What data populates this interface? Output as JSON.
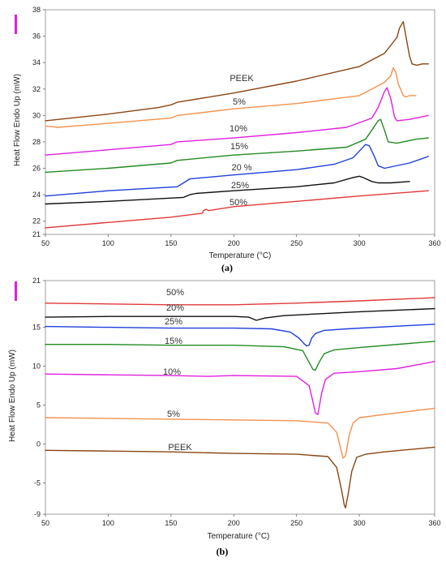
{
  "chart_data": [
    {
      "type": "line",
      "panel_label": "(a)",
      "xlabel": "Temperature (°C)",
      "ylabel": "Heat Flow Endo Up (mW)",
      "xlim": [
        50,
        360
      ],
      "ylim": [
        21,
        38
      ],
      "x_ticks": [
        "50",
        "100",
        "150",
        "200",
        "250",
        "300",
        "360"
      ],
      "y_ticks": [
        "21",
        "22",
        "24",
        "26",
        "28",
        "30",
        "32",
        "34",
        "36",
        "38"
      ],
      "grid": false,
      "legend_marker_color": "#e020e0",
      "series": [
        {
          "name": "PEEK",
          "color": "#8b4513",
          "x": [
            50,
            100,
            140,
            150,
            155,
            200,
            250,
            300,
            320,
            325,
            330,
            332,
            335,
            340,
            342,
            346,
            350,
            355
          ],
          "y": [
            29.6,
            30.1,
            30.6,
            30.8,
            31.0,
            31.7,
            32.6,
            33.7,
            34.7,
            35.3,
            35.9,
            36.6,
            37.1,
            34.5,
            33.9,
            33.8,
            33.9,
            33.9
          ]
        },
        {
          "name": "5%",
          "color": "#f5914d",
          "x": [
            50,
            60,
            100,
            150,
            155,
            200,
            250,
            300,
            320,
            325,
            327,
            329,
            331,
            335,
            337,
            340,
            345
          ],
          "y": [
            29.2,
            29.1,
            29.4,
            29.8,
            30.0,
            30.5,
            30.9,
            31.5,
            32.5,
            33.0,
            33.6,
            33.3,
            32.4,
            31.5,
            31.4,
            31.5,
            31.5
          ]
        },
        {
          "name": "10%",
          "color": "#e020e0",
          "x": [
            50,
            100,
            150,
            155,
            200,
            250,
            290,
            310,
            315,
            320,
            322,
            325,
            328,
            330,
            340,
            355
          ],
          "y": [
            27.0,
            27.4,
            27.8,
            28.0,
            28.3,
            28.7,
            29.1,
            29.8,
            30.6,
            31.8,
            32.1,
            31.3,
            29.9,
            29.6,
            29.7,
            30.0
          ]
        },
        {
          "name": "15%",
          "color": "#228b22",
          "x": [
            50,
            100,
            150,
            155,
            200,
            250,
            290,
            305,
            310,
            315,
            317,
            320,
            323,
            330,
            345,
            355
          ],
          "y": [
            25.7,
            26.0,
            26.4,
            26.6,
            27.0,
            27.3,
            27.6,
            28.2,
            28.9,
            29.6,
            29.7,
            28.9,
            28.0,
            27.9,
            28.2,
            28.3
          ]
        },
        {
          "name": "20 %",
          "color": "#1f3fdb",
          "x": [
            50,
            100,
            155,
            160,
            165,
            200,
            250,
            280,
            295,
            300,
            305,
            308,
            312,
            315,
            320,
            340,
            355
          ],
          "y": [
            23.9,
            24.3,
            24.6,
            24.9,
            25.2,
            25.5,
            25.9,
            26.3,
            26.8,
            27.3,
            27.8,
            27.7,
            26.9,
            26.2,
            26.0,
            26.4,
            26.9
          ]
        },
        {
          "name": "25%",
          "color": "#111111",
          "x": [
            50,
            100,
            160,
            165,
            170,
            200,
            250,
            280,
            295,
            300,
            303,
            310,
            315,
            325,
            340
          ],
          "y": [
            23.3,
            23.5,
            23.8,
            24.0,
            24.1,
            24.3,
            24.6,
            24.9,
            25.3,
            25.4,
            25.3,
            25.0,
            24.9,
            24.9,
            25.0
          ]
        },
        {
          "name": "50%",
          "color": "#e03a3a",
          "x": [
            50,
            100,
            150,
            175,
            176,
            178,
            180,
            200,
            250,
            300,
            355
          ],
          "y": [
            21.5,
            21.9,
            22.3,
            22.6,
            22.8,
            22.9,
            22.8,
            23.1,
            23.5,
            23.9,
            24.3
          ]
        }
      ]
    },
    {
      "type": "line",
      "panel_label": "(b)",
      "xlabel": "Temperature (°C)",
      "ylabel": "Heat Flow Endo Up (mW)",
      "xlim": [
        50,
        360
      ],
      "ylim": [
        -9,
        21
      ],
      "x_ticks": [
        "50",
        "100",
        "150",
        "200",
        "250",
        "300",
        "360"
      ],
      "y_ticks": [
        "-9",
        "-5",
        "0",
        "5",
        "10",
        "15",
        "21"
      ],
      "grid": false,
      "legend_marker_color": "#e020e0",
      "series": [
        {
          "name": "50%",
          "color": "#e03a3a",
          "x": [
            50,
            100,
            150,
            200,
            250,
            300,
            360
          ],
          "y": [
            18.1,
            18.0,
            17.9,
            17.9,
            18.1,
            18.4,
            18.8
          ]
        },
        {
          "name": "20%",
          "color": "#111111",
          "x": [
            50,
            100,
            150,
            200,
            212,
            218,
            225,
            240,
            300,
            360
          ],
          "y": [
            16.3,
            16.4,
            16.4,
            16.4,
            16.3,
            15.9,
            16.2,
            16.5,
            17.0,
            17.4
          ]
        },
        {
          "name": "25%",
          "color": "#1f3fdb",
          "x": [
            50,
            100,
            150,
            200,
            230,
            245,
            252,
            256,
            258,
            260,
            262,
            265,
            272,
            290,
            360
          ],
          "y": [
            15.1,
            15.0,
            14.9,
            14.9,
            14.8,
            14.4,
            13.6,
            12.9,
            12.6,
            12.7,
            13.6,
            14.2,
            14.6,
            14.8,
            15.4
          ]
        },
        {
          "name": "15%",
          "color": "#228b22",
          "x": [
            50,
            100,
            150,
            200,
            240,
            255,
            260,
            263,
            265,
            268,
            272,
            280,
            300,
            360
          ],
          "y": [
            12.8,
            12.8,
            12.7,
            12.7,
            12.5,
            12.0,
            10.5,
            9.6,
            9.5,
            10.5,
            11.6,
            12.1,
            12.4,
            13.2
          ]
        },
        {
          "name": "10%",
          "color": "#e020e0",
          "x": [
            50,
            100,
            150,
            180,
            200,
            250,
            260,
            263,
            265,
            267,
            270,
            273,
            280,
            300,
            330,
            360
          ],
          "y": [
            9.0,
            8.9,
            8.8,
            8.7,
            8.8,
            8.7,
            7.5,
            5.5,
            4.0,
            3.8,
            6.5,
            8.3,
            9.1,
            9.3,
            9.7,
            10.6
          ]
        },
        {
          "name": "5%",
          "color": "#f5914d",
          "x": [
            50,
            100,
            150,
            200,
            250,
            275,
            282,
            285,
            287,
            289,
            292,
            295,
            300,
            320,
            360
          ],
          "y": [
            3.4,
            3.3,
            3.2,
            3.1,
            3.0,
            2.7,
            1.5,
            -0.5,
            -1.8,
            -1.5,
            1.2,
            2.7,
            3.4,
            3.8,
            4.6
          ]
        },
        {
          "name": "PEEK",
          "color": "#8b4513",
          "x": [
            50,
            100,
            150,
            200,
            250,
            275,
            282,
            286,
            288,
            289,
            291,
            294,
            298,
            305,
            320,
            360
          ],
          "y": [
            -0.8,
            -0.9,
            -1.0,
            -1.2,
            -1.3,
            -1.6,
            -3.0,
            -6.0,
            -7.8,
            -8.2,
            -6.5,
            -3.5,
            -1.7,
            -1.3,
            -1.0,
            -0.4
          ]
        }
      ]
    }
  ]
}
